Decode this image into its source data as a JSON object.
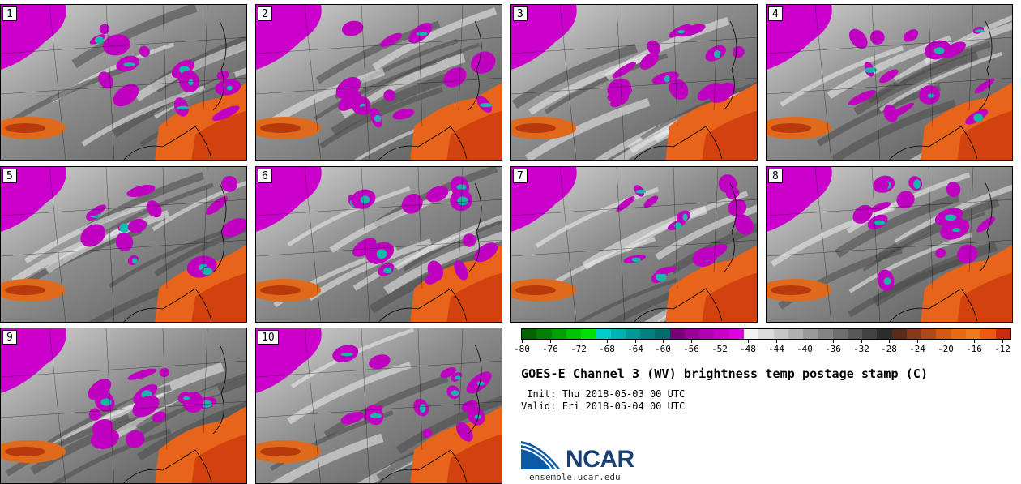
{
  "panels": [
    {
      "label": "1"
    },
    {
      "label": "2"
    },
    {
      "label": "3"
    },
    {
      "label": "4"
    },
    {
      "label": "5"
    },
    {
      "label": "6"
    },
    {
      "label": "7"
    },
    {
      "label": "8"
    },
    {
      "label": "9"
    },
    {
      "label": "10"
    }
  ],
  "colorbar": {
    "colors": [
      "#006400",
      "#008000",
      "#00a000",
      "#00c400",
      "#00e000",
      "#00cccc",
      "#00b3b3",
      "#009999",
      "#008080",
      "#006b6b",
      "#7a007a",
      "#990099",
      "#b000b0",
      "#c800c8",
      "#e000e0",
      "#f2f2f2",
      "#dcdcdc",
      "#c6c6c6",
      "#b0b0b0",
      "#9a9a9a",
      "#848484",
      "#6e6e6e",
      "#585858",
      "#424242",
      "#2c2c2c",
      "#5a2a1a",
      "#8a3a1a",
      "#b04a14",
      "#d25a14",
      "#ea6a14",
      "#f07a1e",
      "#ee5a14",
      "#cc2a0a"
    ],
    "ticks": [
      "-80",
      "-76",
      "-72",
      "-68",
      "-64",
      "-60",
      "-56",
      "-52",
      "-48",
      "-44",
      "-40",
      "-36",
      "-32",
      "-28",
      "-24",
      "-20",
      "-16",
      "-12"
    ]
  },
  "title": "GOES-E Channel 3 (WV) brightness temp postage stamp (C)",
  "init": " Init: Thu 2018-05-03 00 UTC",
  "valid": "Valid: Fri 2018-05-04 00 UTC",
  "logo": {
    "text": "NCAR",
    "site": "ensemble.ucar.edu"
  }
}
